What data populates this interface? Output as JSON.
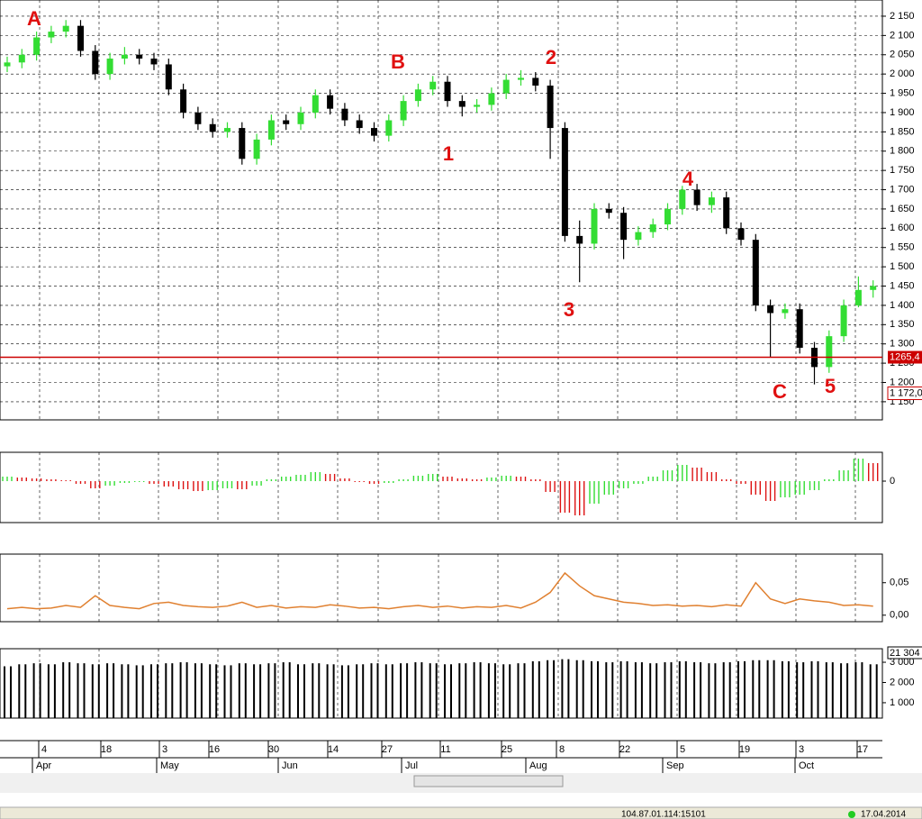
{
  "chart_data": [
    {
      "type": "candlestick",
      "open": [
        2020,
        2030,
        2050,
        2095,
        2110,
        2125,
        2060,
        2000,
        2040,
        2050,
        2040,
        2025,
        1960,
        1900,
        1870,
        1850,
        1860,
        1780,
        1830,
        1880,
        1870,
        1900,
        1945,
        1910,
        1880,
        1860,
        1840,
        1880,
        1930,
        1960,
        1980,
        1930,
        1915,
        1920,
        1950,
        1985,
        1990,
        1970,
        1860,
        1580,
        1560,
        1650,
        1640,
        1570,
        1590,
        1610,
        1650,
        1700,
        1660,
        1680,
        1600,
        1570,
        1400,
        1380,
        1390,
        1290,
        1240,
        1320,
        1400,
        1440
      ],
      "high": [
        2045,
        2065,
        2110,
        2125,
        2140,
        2140,
        2075,
        2055,
        2070,
        2065,
        2055,
        2040,
        1975,
        1915,
        1885,
        1875,
        1875,
        1845,
        1895,
        1895,
        1915,
        1960,
        1960,
        1925,
        1895,
        1875,
        1895,
        1945,
        1975,
        1995,
        1995,
        1945,
        1935,
        1965,
        2000,
        2010,
        2005,
        1985,
        1875,
        1620,
        1665,
        1665,
        1655,
        1605,
        1625,
        1665,
        1710,
        1715,
        1695,
        1695,
        1615,
        1585,
        1415,
        1405,
        1405,
        1305,
        1335,
        1415,
        1475,
        1465
      ],
      "low": [
        2005,
        2015,
        2035,
        2080,
        2095,
        2045,
        1985,
        1985,
        2025,
        2025,
        2010,
        1945,
        1885,
        1855,
        1835,
        1835,
        1765,
        1765,
        1815,
        1855,
        1855,
        1885,
        1895,
        1865,
        1845,
        1825,
        1825,
        1865,
        1915,
        1945,
        1915,
        1890,
        1900,
        1905,
        1935,
        1970,
        1955,
        1780,
        1565,
        1460,
        1545,
        1625,
        1520,
        1555,
        1575,
        1595,
        1635,
        1645,
        1640,
        1585,
        1555,
        1385,
        1265,
        1365,
        1275,
        1195,
        1225,
        1305,
        1395,
        1420
      ],
      "close": [
        2030,
        2050,
        2095,
        2110,
        2125,
        2060,
        2000,
        2040,
        2050,
        2040,
        2025,
        1960,
        1900,
        1870,
        1850,
        1860,
        1780,
        1830,
        1880,
        1870,
        1900,
        1945,
        1910,
        1880,
        1860,
        1840,
        1880,
        1930,
        1960,
        1980,
        1930,
        1915,
        1920,
        1950,
        1985,
        1990,
        1970,
        1860,
        1580,
        1560,
        1650,
        1640,
        1570,
        1590,
        1610,
        1650,
        1700,
        1660,
        1680,
        1600,
        1570,
        1400,
        1380,
        1390,
        1290,
        1240,
        1320,
        1400,
        1440,
        1450
      ],
      "up_color": "#33dd33",
      "down_color": "#000000",
      "ylim": [
        1103,
        2192
      ],
      "yticks": [
        {
          "value": 1150,
          "label": "1 150"
        },
        {
          "value": 1200,
          "label": "1 200"
        },
        {
          "value": 1250,
          "label": "1 250"
        },
        {
          "value": 1300,
          "label": "1 300"
        },
        {
          "value": 1350,
          "label": "1 350"
        },
        {
          "value": 1400,
          "label": "1 400"
        },
        {
          "value": 1450,
          "label": "1 450"
        },
        {
          "value": 1500,
          "label": "1 500"
        },
        {
          "value": 1550,
          "label": "1 550"
        },
        {
          "value": 1600,
          "label": "1 600"
        },
        {
          "value": 1650,
          "label": "1 650"
        },
        {
          "value": 1700,
          "label": "1 700"
        },
        {
          "value": 1750,
          "label": "1 750"
        },
        {
          "value": 1800,
          "label": "1 800"
        },
        {
          "value": 1850,
          "label": "1 850"
        },
        {
          "value": 1900,
          "label": "1 900"
        },
        {
          "value": 1950,
          "label": "1 950"
        },
        {
          "value": 2000,
          "label": "2 000"
        },
        {
          "value": 2050,
          "label": "2 050"
        },
        {
          "value": 2100,
          "label": "2 100"
        },
        {
          "value": 2150,
          "label": "2 150"
        }
      ],
      "hline": {
        "value": 1265.4,
        "label": "1265,4",
        "color": "#cc0000"
      },
      "marker_label": {
        "value": 1172.0,
        "label": "1 172,0"
      },
      "annotations": [
        "A",
        "B",
        "1",
        "2",
        "3",
        "4",
        "C",
        "5"
      ],
      "grid": true
    },
    {
      "type": "histogram",
      "values": [
        5,
        4,
        3,
        2,
        1,
        -3,
        -8,
        -5,
        -2,
        -1,
        -3,
        -6,
        -9,
        -11,
        -10,
        -8,
        -9,
        -5,
        2,
        5,
        7,
        10,
        8,
        3,
        -1,
        -3,
        -2,
        2,
        6,
        8,
        5,
        3,
        2,
        4,
        6,
        5,
        2,
        -12,
        -35,
        -38,
        -25,
        -15,
        -8,
        -3,
        5,
        12,
        18,
        15,
        10,
        2,
        -3,
        -15,
        -22,
        -18,
        -15,
        -10,
        2,
        12,
        25,
        20
      ],
      "up_color": "#33dd33",
      "down_color": "#dd1111",
      "ylim": [
        -46,
        32
      ],
      "yticks": [
        0
      ],
      "grid": true
    },
    {
      "type": "line",
      "values": [
        0.01,
        0.012,
        0.01,
        0.011,
        0.015,
        0.012,
        0.03,
        0.015,
        0.012,
        0.01,
        0.018,
        0.02,
        0.015,
        0.013,
        0.012,
        0.014,
        0.02,
        0.012,
        0.015,
        0.011,
        0.013,
        0.012,
        0.016,
        0.014,
        0.011,
        0.012,
        0.01,
        0.013,
        0.015,
        0.012,
        0.014,
        0.011,
        0.013,
        0.012,
        0.015,
        0.011,
        0.02,
        0.035,
        0.065,
        0.045,
        0.03,
        0.025,
        0.02,
        0.018,
        0.015,
        0.016,
        0.014,
        0.015,
        0.013,
        0.016,
        0.014,
        0.05,
        0.025,
        0.018,
        0.025,
        0.022,
        0.02,
        0.015,
        0.016,
        0.014
      ],
      "color": "#e08030",
      "ylim": [
        -0.01,
        0.094
      ],
      "yticks": [
        {
          "value": 0.05,
          "label": "0,05"
        },
        {
          "value": 0,
          "label": "0,00"
        }
      ],
      "grid": true
    },
    {
      "type": "volume",
      "values": [
        2800,
        2900,
        2950,
        2900,
        3000,
        2950,
        2900,
        2950,
        2900,
        2850,
        2900,
        2950,
        3000,
        2950,
        2900,
        2850,
        2950,
        2900,
        2950,
        3000,
        2900,
        2950,
        2900,
        2850,
        2900,
        2950,
        2900,
        2950,
        3000,
        2950,
        2900,
        2950,
        3000,
        2950,
        2900,
        2950,
        3050,
        3100,
        3150,
        3100,
        3050,
        3000,
        3050,
        3000,
        2950,
        3000,
        3050,
        3000,
        2950,
        3000,
        3050,
        3100,
        3100,
        3050,
        3000,
        3050,
        3000,
        2950,
        3000,
        2900
      ],
      "color": "#000000",
      "ylim": [
        240,
        3670
      ],
      "yticks": [
        {
          "value": 1000,
          "label": "1 000"
        },
        {
          "value": 2000,
          "label": "2 000"
        },
        {
          "value": 3000,
          "label": "3 000"
        }
      ],
      "last_label": "21 304",
      "grid": true
    }
  ],
  "x_axis": {
    "ticks": [
      "4",
      "18",
      "3",
      "16",
      "30",
      "14",
      "27",
      "11",
      "25",
      "8",
      "22",
      "5",
      "19",
      "3",
      "17"
    ],
    "months": [
      "Apr",
      "May",
      "Jun",
      "Jul",
      "Aug",
      "Sep",
      "Oct"
    ]
  },
  "status": {
    "connection": "104.87.01.114:15101",
    "date": "17.04.2014"
  }
}
